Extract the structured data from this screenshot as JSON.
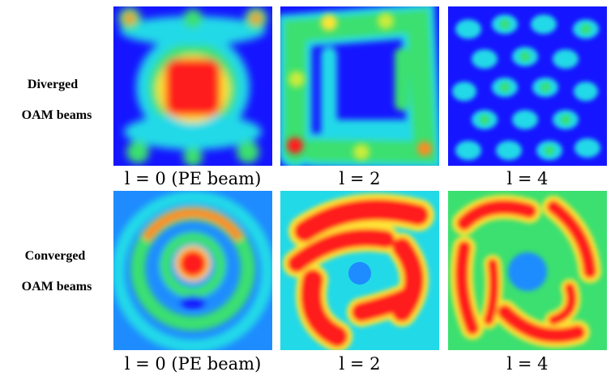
{
  "rows": [
    {
      "label_line1": "Diverged",
      "label_line2": "OAM beams",
      "panels": [
        {
          "caption": "l = 0 (PE beam)",
          "mode": 0
        },
        {
          "caption": "l = 2",
          "mode": 2
        },
        {
          "caption": "l = 4",
          "mode": 4
        }
      ]
    },
    {
      "label_line1": "Converged",
      "label_line2": "OAM beams",
      "panels": [
        {
          "caption": "l = 0 (PE beam)",
          "mode": 0
        },
        {
          "caption": "l = 2",
          "mode": 2
        },
        {
          "caption": "l = 4",
          "mode": 4
        }
      ]
    }
  ],
  "colormap": [
    "#1515ff",
    "#1e8cff",
    "#22d9e8",
    "#3be070",
    "#c8ec3a",
    "#ffe436",
    "#ff8a20",
    "#ff1a1a"
  ]
}
